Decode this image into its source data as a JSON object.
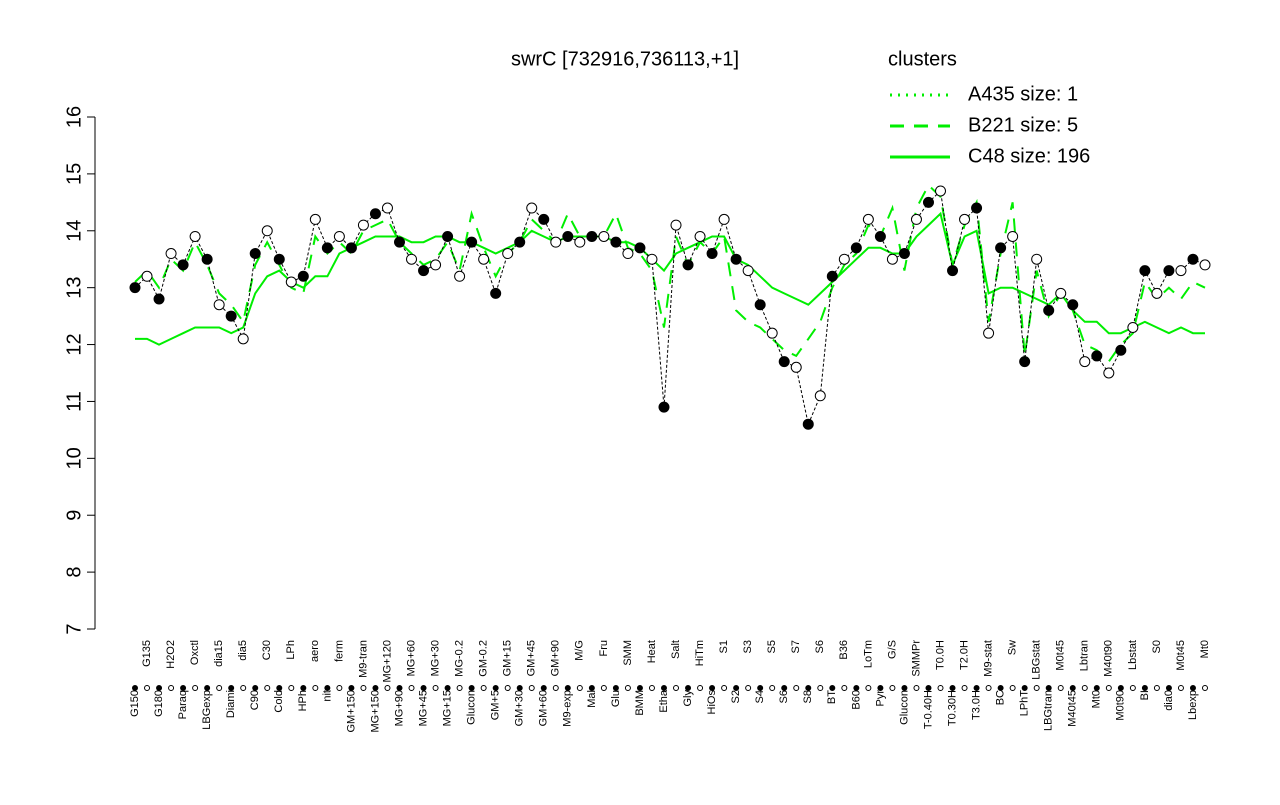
{
  "chart_data": {
    "type": "line",
    "title": "swrC [732916,736113,+1]",
    "legend_title": "clusters",
    "legend_color": "#00ee00",
    "categories": [
      "G150",
      "G135",
      "G180",
      "H2O2",
      "Paraq",
      "Oxctl",
      "LBGexp",
      "dia15",
      "Diami",
      "dia5",
      "C90",
      "C30",
      "Cold",
      "LPh",
      "HPh",
      "aero",
      "nit",
      "ferm",
      "GM+150",
      "M9-tran",
      "MG+150",
      "MG+120",
      "MG+90",
      "MG+60",
      "MG+45",
      "MG+30",
      "MG+15",
      "MG-0.2",
      "Glucon",
      "GM-0.2",
      "GM+5",
      "GM+15",
      "GM+30",
      "GM+45",
      "GM+60",
      "GM+90",
      "M9-exp",
      "M/G",
      "Mal",
      "Fru",
      "Glu",
      "SMM",
      "BMM",
      "Heat",
      "Etha",
      "Salt",
      "Gly",
      "HiTm",
      "HiOs",
      "S1",
      "S2",
      "S3",
      "S4",
      "S5",
      "S6",
      "S7",
      "S8",
      "S6",
      "BT",
      "B36",
      "B60",
      "LoTm",
      "Pyr",
      "G/S",
      "Glucon",
      "SMMPr",
      "T-0.40H",
      "T0.0H",
      "T0.30H",
      "T2.0H",
      "T3.0H",
      "M9-stat",
      "BC",
      "Sw",
      "LPhT",
      "LBGstat",
      "LBGtran",
      "M0t45",
      "M40t45",
      "Lbtran",
      "Mt0",
      "M40t90",
      "M0t90",
      "Lbstat",
      "BI",
      "S0",
      "dia0",
      "M0t45",
      "Lbexp",
      "Mt0"
    ],
    "values": [
      13.0,
      13.2,
      12.8,
      13.6,
      13.4,
      13.9,
      13.5,
      12.7,
      12.5,
      12.1,
      13.6,
      14.0,
      13.5,
      13.1,
      13.2,
      14.2,
      13.7,
      13.9,
      13.7,
      14.1,
      14.3,
      14.4,
      13.8,
      13.5,
      13.3,
      13.4,
      13.9,
      13.2,
      13.8,
      13.5,
      12.9,
      13.6,
      13.8,
      14.4,
      14.2,
      13.8,
      13.9,
      13.8,
      13.9,
      13.9,
      13.8,
      13.6,
      13.7,
      13.5,
      10.9,
      14.1,
      13.4,
      13.9,
      13.6,
      14.2,
      13.5,
      13.3,
      12.7,
      12.2,
      11.7,
      11.6,
      10.6,
      11.1,
      13.2,
      13.5,
      13.7,
      14.2,
      13.9,
      13.5,
      13.6,
      14.2,
      14.5,
      14.7,
      13.3,
      14.2,
      14.4,
      12.2,
      13.7,
      13.9,
      11.7,
      13.5,
      12.6,
      12.9,
      12.7,
      11.7,
      11.8,
      11.5,
      11.9,
      12.3,
      13.3,
      12.9,
      13.3,
      13.3,
      13.5,
      13.4
    ],
    "point_color": "#000000",
    "series": [
      {
        "name": "A435 size: 1",
        "color": "#00ee00",
        "dash": "2,6"
      },
      {
        "name": "B221 size: 5",
        "color": "#00ee00",
        "dash": "14,10",
        "values": [
          13.1,
          13.3,
          13.0,
          13.5,
          13.3,
          13.8,
          13.4,
          12.9,
          12.7,
          12.4,
          13.4,
          13.8,
          13.4,
          13.0,
          12.9,
          13.9,
          13.6,
          13.8,
          13.6,
          14.0,
          14.1,
          14.2,
          13.8,
          13.6,
          13.4,
          13.5,
          13.8,
          13.3,
          14.3,
          13.7,
          13.2,
          13.6,
          13.8,
          14.2,
          14.0,
          13.8,
          14.3,
          13.9,
          13.9,
          13.9,
          14.3,
          13.7,
          13.6,
          13.3,
          12.3,
          13.9,
          13.4,
          13.8,
          13.6,
          13.9,
          12.6,
          12.4,
          12.3,
          12.1,
          11.9,
          11.8,
          12.1,
          12.4,
          13.0,
          13.4,
          13.6,
          14.1,
          13.9,
          14.4,
          13.3,
          14.4,
          14.8,
          14.6,
          13.4,
          14.1,
          14.5,
          12.4,
          13.6,
          14.5,
          11.8,
          13.3,
          12.5,
          12.9,
          12.6,
          12.0,
          11.9,
          11.7,
          12.0,
          12.2,
          13.1,
          12.8,
          13.0,
          12.8,
          13.1,
          13.0
        ]
      },
      {
        "name": "C48 size: 196",
        "color": "#00ee00",
        "dash": "",
        "values": [
          12.1,
          12.1,
          12.0,
          12.1,
          12.2,
          12.3,
          12.3,
          12.3,
          12.2,
          12.3,
          12.9,
          13.2,
          13.3,
          13.1,
          13.0,
          13.2,
          13.2,
          13.6,
          13.7,
          13.8,
          13.9,
          13.9,
          13.9,
          13.8,
          13.8,
          13.9,
          13.9,
          13.8,
          13.8,
          13.7,
          13.6,
          13.7,
          13.8,
          14.0,
          13.9,
          13.8,
          13.9,
          13.9,
          13.9,
          13.9,
          13.8,
          13.8,
          13.7,
          13.5,
          13.3,
          13.6,
          13.7,
          13.8,
          13.9,
          13.9,
          13.5,
          13.4,
          13.2,
          13.0,
          12.9,
          12.8,
          12.7,
          12.9,
          13.1,
          13.3,
          13.5,
          13.7,
          13.7,
          13.6,
          13.6,
          13.9,
          14.1,
          14.3,
          13.4,
          13.9,
          14.0,
          12.9,
          13.0,
          13.0,
          12.9,
          12.8,
          12.7,
          12.9,
          12.6,
          12.4,
          12.4,
          12.2,
          12.2,
          12.3,
          12.4,
          12.3,
          12.2,
          12.3,
          12.2,
          12.2
        ]
      }
    ],
    "ylim": [
      7,
      16
    ],
    "yticks": [
      7,
      8,
      9,
      10,
      11,
      12,
      13,
      14,
      15,
      16
    ]
  }
}
